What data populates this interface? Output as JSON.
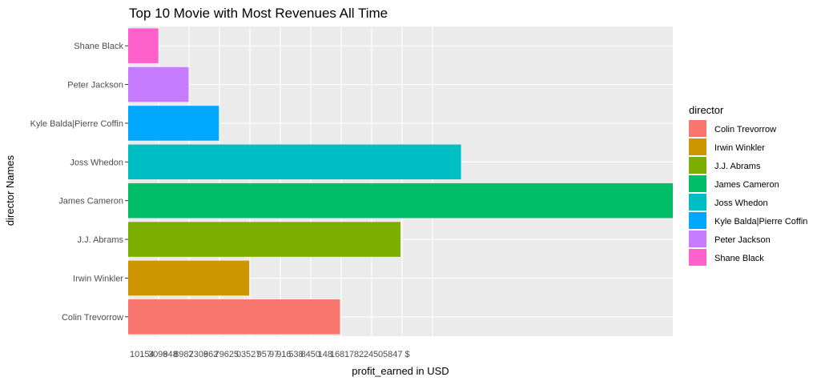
{
  "chart_data": {
    "type": "bar",
    "orientation": "horizontal",
    "title": "Top 10 Movie with Most Revenues All Time",
    "xlabel": "profit_earned in USD",
    "ylabel": "director Names",
    "categories": [
      "Colin Trevorrow",
      "Irwin Winkler",
      "J.J. Abrams",
      "James Cameron",
      "Joss Whedon",
      "Kyle Balda|Pierre Coffin",
      "Peter Jackson",
      "Shane Black"
    ],
    "values": [
      7,
      4,
      9,
      18,
      11,
      3,
      2,
      1
    ],
    "colors": [
      "#F8766D",
      "#CD9600",
      "#7CAE00",
      "#00BE67",
      "#00BFC4",
      "#00A9FF",
      "#C77CFF",
      "#FF61CC"
    ],
    "x_tick_labels": [
      "10154",
      "3098",
      "948",
      "8982",
      "7309",
      "862",
      "7",
      "9",
      "6",
      "25",
      "0",
      "3",
      "527",
      "9",
      "57",
      "97",
      "9",
      "16",
      "5",
      "38",
      "8",
      "4",
      "50",
      "1",
      "48",
      "1",
      "6",
      "8",
      "1",
      "7",
      "8",
      "2",
      "2",
      "4",
      "5",
      "0",
      "5847 $"
    ],
    "grid": true,
    "legend": {
      "title": "director",
      "position": "right",
      "entries": [
        "Colin Trevorrow",
        "Irwin Winkler",
        "J.J. Abrams",
        "James Cameron",
        "Joss Whedon",
        "Kyle Balda|Pierre Coffin",
        "Peter Jackson",
        "Shane Black"
      ]
    }
  }
}
